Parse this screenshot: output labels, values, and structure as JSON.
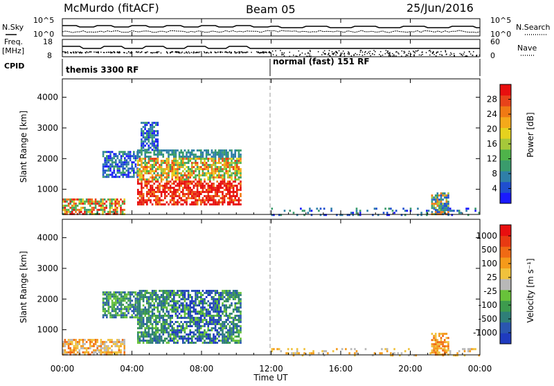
{
  "header": {
    "station": "McMurdo (fitACF)",
    "beam": "Beam 05",
    "date": "25/Jun/2016"
  },
  "aux_panels": {
    "nsky_label": "N.Sky",
    "nsearch_label": "N.Search",
    "freq_label_1": "Freq.",
    "freq_label_2": "[MHz]",
    "nave_label": "Nave",
    "cpid_label": "CPID",
    "nsky_ticks": [
      "10^5",
      "10^0"
    ],
    "nsearch_ticks": [
      "10^5",
      "10^0"
    ],
    "freq_ticks": [
      "18",
      "8"
    ],
    "nave_ticks": [
      "60",
      "0"
    ],
    "cpid_segments": [
      {
        "label": "themis 3300 RF",
        "start_hour": 0
      },
      {
        "label": "normal (fast) 151 RF",
        "start_hour": 12
      }
    ]
  },
  "chart_data": [
    {
      "type": "heatmap",
      "title": "",
      "xlabel": "Time UT",
      "ylabel": "Slant Range [km]",
      "xticks": [
        "00:00",
        "04:00",
        "08:00",
        "12:00",
        "16:00",
        "20:00",
        "00:00"
      ],
      "xlim_hours": [
        0,
        24
      ],
      "yticks": [
        "1000",
        "2000",
        "3000",
        "4000"
      ],
      "ylim_km": [
        180,
        4600
      ],
      "colorbar": {
        "label": "Power [dB]",
        "ticks": [
          "4",
          "8",
          "12",
          "16",
          "20",
          "24",
          "28"
        ],
        "colors": [
          "#1a1aff",
          "#1f4fcf",
          "#2f7fa8",
          "#3a9c6c",
          "#4fb34a",
          "#a6c83a",
          "#e6d21e",
          "#f5a91a",
          "#f07a14",
          "#e8431a",
          "#e80f0f"
        ]
      },
      "regions": [
        {
          "t": [
            0.0,
            3.6
          ],
          "r": [
            200,
            700
          ],
          "level": "mixed-high"
        },
        {
          "t": [
            2.3,
            4.3
          ],
          "r": [
            1400,
            2250
          ],
          "level": "low"
        },
        {
          "t": [
            4.3,
            10.3
          ],
          "r": [
            500,
            2300
          ],
          "level": "high"
        },
        {
          "t": [
            4.5,
            5.5
          ],
          "r": [
            2300,
            3200
          ],
          "level": "low"
        },
        {
          "t": [
            12.0,
            24.0
          ],
          "r": [
            180,
            400
          ],
          "level": "low-sparse"
        },
        {
          "t": [
            21.2,
            22.2
          ],
          "r": [
            200,
            900
          ],
          "level": "mixed"
        }
      ]
    },
    {
      "type": "heatmap",
      "title": "",
      "xlabel": "Time UT",
      "ylabel": "Slant Range [km]",
      "xticks": [
        "00:00",
        "04:00",
        "08:00",
        "12:00",
        "16:00",
        "20:00",
        "00:00"
      ],
      "xlim_hours": [
        0,
        24
      ],
      "yticks": [
        "1000",
        "2000",
        "3000",
        "4000"
      ],
      "ylim_km": [
        180,
        4600
      ],
      "colorbar": {
        "label": "Velocity [m s⁻¹]",
        "ticks": [
          "1000",
          "500",
          "100",
          "25",
          "-25",
          "-100",
          "-500",
          "-1000"
        ],
        "colors": [
          "#1f3bbf",
          "#2a56b0",
          "#2f7f78",
          "#3d9b4e",
          "#68c23a",
          "#b8b8b8",
          "#f0c23c",
          "#f59a1a",
          "#f06a14",
          "#e83a12",
          "#e80f0f"
        ]
      },
      "regions": [
        {
          "t": [
            0.0,
            3.6
          ],
          "r": [
            200,
            700
          ],
          "level": "yellow-orange"
        },
        {
          "t": [
            2.3,
            4.3
          ],
          "r": [
            1400,
            2250
          ],
          "level": "green"
        },
        {
          "t": [
            4.3,
            10.3
          ],
          "r": [
            600,
            2300
          ],
          "level": "green-blue"
        },
        {
          "t": [
            12.0,
            24.0
          ],
          "r": [
            180,
            400
          ],
          "level": "yellow-sparse"
        },
        {
          "t": [
            21.2,
            22.2
          ],
          "r": [
            200,
            900
          ],
          "level": "orange"
        }
      ]
    }
  ]
}
